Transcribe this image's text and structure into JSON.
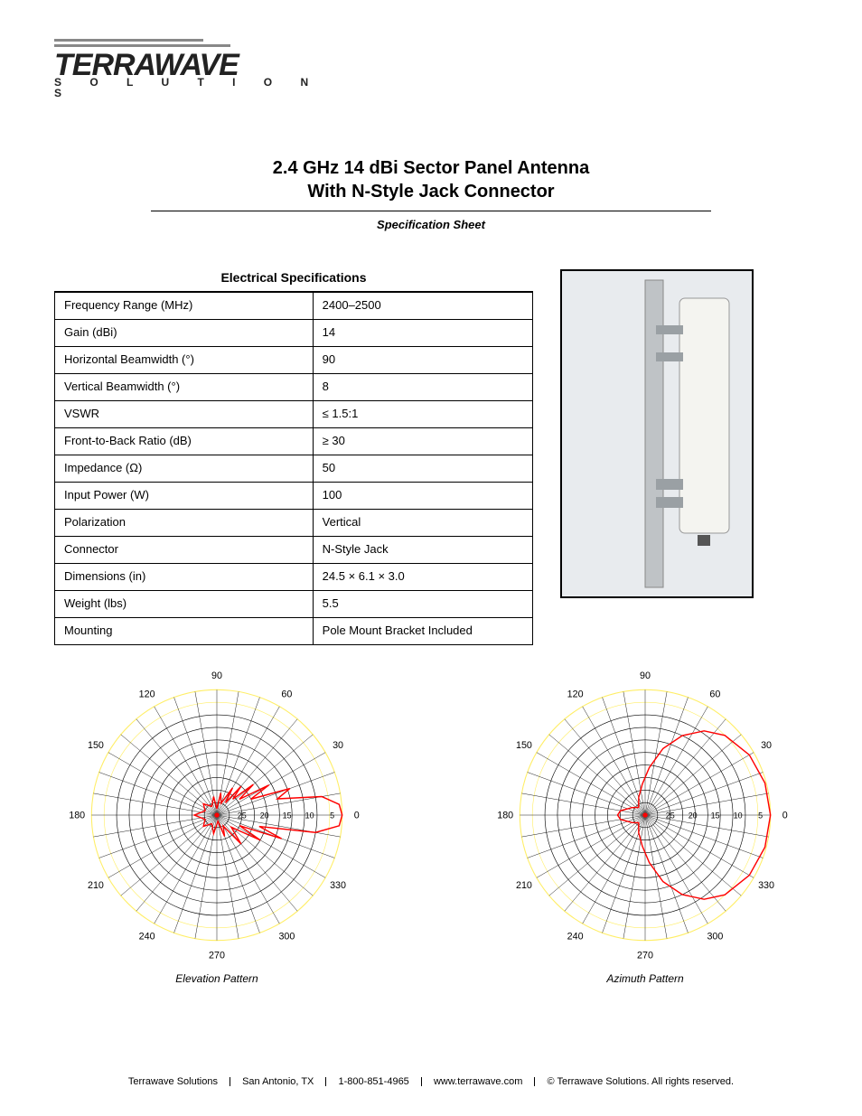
{
  "brand": {
    "name": "TERRAWAVE",
    "sub": "S O L U T I O N S"
  },
  "header": {
    "title_line1": "2.4 GHz 14 dBi Sector Panel Antenna",
    "title_line2": "With N-Style Jack Connector",
    "subtitle": "Specification Sheet"
  },
  "spec_table": {
    "caption": "Electrical Specifications",
    "rows": [
      [
        "Frequency Range (MHz)",
        "2400–2500"
      ],
      [
        "Gain (dBi)",
        "14"
      ],
      [
        "Horizontal Beamwidth (°)",
        "90"
      ],
      [
        "Vertical Beamwidth (°)",
        "8"
      ],
      [
        "VSWR",
        "≤ 1.5:1"
      ],
      [
        "Front-to-Back Ratio (dB)",
        "≥ 30"
      ],
      [
        "Impedance (Ω)",
        "50"
      ],
      [
        "Input Power (W)",
        "100"
      ],
      [
        "Polarization",
        "Vertical"
      ],
      [
        "Connector",
        "N-Style Jack"
      ],
      [
        "Dimensions (in)",
        "24.5 × 6.1 × 3.0"
      ],
      [
        "Weight (lbs)",
        "5.5"
      ],
      [
        "Mounting",
        "Pole Mount Bracket Included"
      ]
    ]
  },
  "polar_elevation": {
    "type": "polar",
    "title": "Elevation Pattern",
    "angle_labels": [
      0,
      30,
      60,
      90,
      120,
      150,
      180,
      210,
      240,
      270,
      300,
      330
    ],
    "radial_labels": [
      5,
      10,
      15,
      20,
      25
    ],
    "grid_color": "#000000",
    "highlight_ring_color": "#ffee66",
    "trace_color": "#ff0000",
    "background": "#ffffff",
    "trace_points_deg_r": [
      [
        0,
        1.0
      ],
      [
        5,
        0.98
      ],
      [
        10,
        0.85
      ],
      [
        15,
        0.5
      ],
      [
        20,
        0.62
      ],
      [
        25,
        0.3
      ],
      [
        30,
        0.48
      ],
      [
        35,
        0.22
      ],
      [
        40,
        0.38
      ],
      [
        45,
        0.18
      ],
      [
        50,
        0.3
      ],
      [
        55,
        0.12
      ],
      [
        60,
        0.25
      ],
      [
        70,
        0.1
      ],
      [
        80,
        0.18
      ],
      [
        90,
        0.05
      ],
      [
        100,
        0.15
      ],
      [
        120,
        0.08
      ],
      [
        140,
        0.14
      ],
      [
        160,
        0.1
      ],
      [
        180,
        0.18
      ],
      [
        200,
        0.1
      ],
      [
        220,
        0.14
      ],
      [
        240,
        0.08
      ],
      [
        260,
        0.15
      ],
      [
        280,
        0.05
      ],
      [
        290,
        0.18
      ],
      [
        300,
        0.1
      ],
      [
        310,
        0.3
      ],
      [
        320,
        0.15
      ],
      [
        330,
        0.4
      ],
      [
        335,
        0.2
      ],
      [
        340,
        0.55
      ],
      [
        345,
        0.35
      ],
      [
        350,
        0.8
      ],
      [
        355,
        0.98
      ]
    ]
  },
  "polar_azimuth": {
    "type": "polar",
    "title": "Azimuth Pattern",
    "angle_labels": [
      0,
      30,
      60,
      90,
      120,
      150,
      180,
      210,
      240,
      270,
      300,
      330
    ],
    "radial_labels": [
      5,
      10,
      15,
      20,
      25
    ],
    "grid_color": "#000000",
    "highlight_ring_color": "#ffee66",
    "trace_color": "#ff0000",
    "background": "#ffffff",
    "trace_points_deg_r": [
      [
        0,
        1.0
      ],
      [
        15,
        0.99
      ],
      [
        30,
        0.96
      ],
      [
        45,
        0.9
      ],
      [
        55,
        0.82
      ],
      [
        65,
        0.7
      ],
      [
        75,
        0.55
      ],
      [
        85,
        0.38
      ],
      [
        95,
        0.25
      ],
      [
        110,
        0.15
      ],
      [
        130,
        0.08
      ],
      [
        150,
        0.12
      ],
      [
        170,
        0.2
      ],
      [
        180,
        0.22
      ],
      [
        190,
        0.2
      ],
      [
        210,
        0.12
      ],
      [
        230,
        0.08
      ],
      [
        250,
        0.15
      ],
      [
        265,
        0.25
      ],
      [
        275,
        0.38
      ],
      [
        285,
        0.55
      ],
      [
        295,
        0.7
      ],
      [
        305,
        0.82
      ],
      [
        315,
        0.9
      ],
      [
        330,
        0.96
      ],
      [
        345,
        0.99
      ]
    ]
  },
  "footer": {
    "company": "Terrawave Solutions",
    "address": "San Antonio, TX",
    "phone": "1-800-851-4965",
    "web": "www.terrawave.com",
    "rights": "© Terrawave Solutions. All rights reserved."
  }
}
